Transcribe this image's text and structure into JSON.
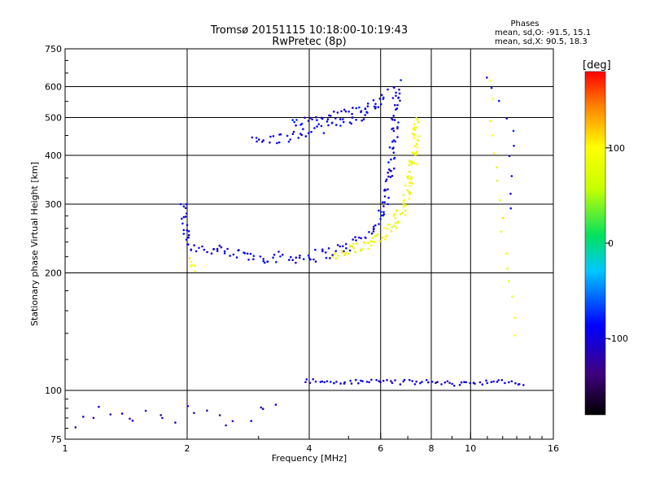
{
  "chart_data": {
    "type": "scatter",
    "title": "Tromsø 20151115  10:18:00-10:19:43",
    "subtitle": "RwPretec (8p)",
    "xlabel": "Frequency [MHz]",
    "ylabel": "Stationary phase Virtual Height [km]",
    "x_scale": "log",
    "y_scale": "log",
    "xlim": [
      1,
      16
    ],
    "ylim": [
      75,
      750
    ],
    "x_ticks": [
      1,
      2,
      4,
      6,
      8,
      10,
      16
    ],
    "y_ticks": [
      75,
      100,
      200,
      300,
      400,
      500,
      600,
      750
    ],
    "x_grid": [
      2,
      4,
      6,
      8,
      10
    ],
    "y_grid": [
      100,
      200,
      300,
      400,
      500,
      600
    ],
    "grid": true,
    "phase_stats": {
      "heading": "Phases",
      "line_o": "mean, sd,O: -91.5, 15.1",
      "line_x": "mean, sd,X:  90.5, 18.3"
    },
    "colorbar": {
      "label": "[deg]",
      "ticks": [
        "100",
        "0",
        "-100"
      ],
      "tick_values": [
        100,
        0,
        -100
      ],
      "range": [
        -180,
        180
      ],
      "placement": "right"
    },
    "series": [
      {
        "traces": [
          {
            "points": [
              [
                1.95,
                300
              ],
              [
                1.97,
                265
              ],
              [
                2.0,
                240
              ],
              [
                2.1,
                232
              ],
              [
                2.3,
                228
              ],
              [
                2.6,
                224
              ],
              [
                3.0,
                220
              ],
              [
                3.5,
                219
              ],
              [
                4.0,
                220
              ],
              [
                4.5,
                226
              ],
              [
                5.0,
                234
              ],
              [
                5.4,
                245
              ],
              [
                5.8,
                262
              ],
              [
                6.1,
                290
              ],
              [
                6.3,
                350
              ],
              [
                6.45,
                420
              ],
              [
                6.55,
                520
              ],
              [
                6.6,
                620
              ]
            ],
            "count": 170,
            "jitter": 0.03,
            "phase": -95
          },
          {
            "points": [
              [
                2.9,
                435
              ],
              [
                3.3,
                440
              ],
              [
                3.8,
                452
              ],
              [
                4.3,
                470
              ],
              [
                4.9,
                490
              ],
              [
                5.5,
                510
              ],
              [
                5.9,
                540
              ],
              [
                6.2,
                580
              ]
            ],
            "count": 60,
            "jitter": 0.025,
            "phase": -95
          },
          {
            "points": [
              [
                3.6,
                485
              ],
              [
                4.1,
                495
              ],
              [
                4.7,
                510
              ],
              [
                5.3,
                525
              ],
              [
                5.8,
                548
              ]
            ],
            "count": 35,
            "jitter": 0.02,
            "phase": -90
          },
          {
            "points": [
              [
                3.9,
                106
              ],
              [
                4.5,
                105
              ],
              [
                5.2,
                105
              ],
              [
                6.0,
                106
              ],
              [
                6.6,
                105
              ],
              [
                7.3,
                105
              ],
              [
                8.0,
                105
              ],
              [
                9.0,
                104
              ],
              [
                10.5,
                105
              ],
              [
                12.0,
                105
              ],
              [
                13.5,
                104
              ]
            ],
            "count": 75,
            "jitter": 0.012,
            "phase": -100
          },
          {
            "points": [
              [
                1.03,
                82
              ],
              [
                1.1,
                85
              ],
              [
                1.3,
                88
              ],
              [
                1.45,
                87
              ],
              [
                1.6,
                85
              ],
              [
                1.9,
                87
              ],
              [
                2.5,
                84
              ],
              [
                3.3,
                88
              ]
            ],
            "count": 22,
            "jitter": 0.05,
            "phase": -105
          }
        ]
      },
      {
        "traces": [
          {
            "points": [
              [
                4.6,
                220
              ],
              [
                5.0,
                226
              ],
              [
                5.5,
                236
              ],
              [
                6.0,
                250
              ],
              [
                6.5,
                268
              ],
              [
                6.9,
                300
              ],
              [
                7.1,
                350
              ],
              [
                7.3,
                410
              ],
              [
                7.35,
                490
              ]
            ],
            "count": 120,
            "jitter": 0.03,
            "phase": 90
          },
          {
            "points": [
              [
                2.0,
                212
              ],
              [
                2.1,
                205
              ]
            ],
            "count": 6,
            "jitter": 0.03,
            "phase": 90
          },
          {
            "points": [
              [
                11.2,
                610
              ],
              [
                11.5,
                400
              ],
              [
                11.8,
                300
              ],
              [
                12.2,
                230
              ],
              [
                12.6,
                180
              ],
              [
                12.8,
                140
              ]
            ],
            "count": 16,
            "jitter": 0.02,
            "phase": 90
          },
          {
            "points": [
              [
                11.0,
                650
              ],
              [
                12.5,
                500
              ],
              [
                12.8,
                300
              ]
            ],
            "count": 10,
            "jitter": 0.03,
            "phase": -95
          }
        ]
      }
    ]
  }
}
